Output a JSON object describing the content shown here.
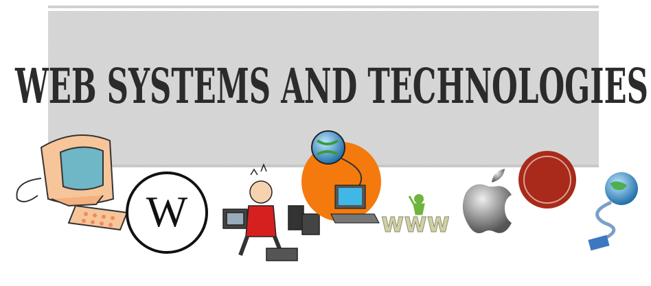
{
  "title": "WEB SYSTEMS AND TECHNOLOGIES",
  "logo_letter": "W",
  "www_sign": "www"
}
